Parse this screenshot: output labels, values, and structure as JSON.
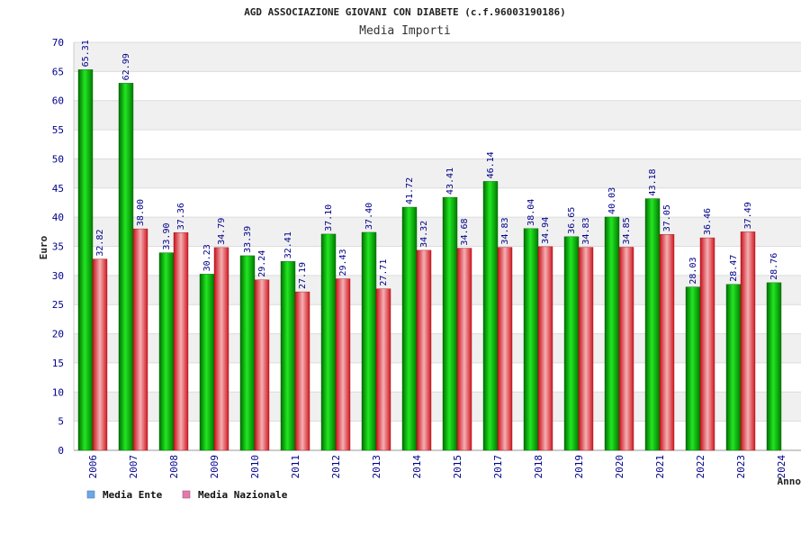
{
  "chart_data": {
    "type": "bar",
    "title": "AGD ASSOCIAZIONE GIOVANI CON DIABETE (c.f.96003190186)",
    "subtitle": "Media Importi",
    "xlabel": "Anno",
    "ylabel": "Euro",
    "ylim": [
      0,
      70
    ],
    "ytick_step": 5,
    "yticks": [
      "0",
      "5",
      "10",
      "15",
      "20",
      "25",
      "30",
      "35",
      "40",
      "45",
      "50",
      "55",
      "60",
      "65",
      "70"
    ],
    "grid": true,
    "legend_position": "bottom-left",
    "categories": [
      "2006",
      "2007",
      "2008",
      "2009",
      "2010",
      "2011",
      "2012",
      "2013",
      "2014",
      "2015",
      "2017",
      "2018",
      "2019",
      "2020",
      "2021",
      "2022",
      "2023",
      "2024"
    ],
    "series": [
      {
        "name": "Media Ente",
        "color": "#00b300",
        "legend_color": "#6aa8e8",
        "values": [
          65.31,
          62.99,
          33.9,
          30.23,
          33.39,
          32.41,
          37.1,
          37.4,
          41.72,
          43.41,
          46.14,
          38.04,
          36.65,
          40.03,
          43.18,
          28.03,
          28.47,
          28.76
        ],
        "labels": [
          "65.31",
          "62.99",
          "33.90",
          "30.23",
          "33.39",
          "32.41",
          "37.10",
          "37.40",
          "41.72",
          "43.41",
          "46.14",
          "38.04",
          "36.65",
          "40.03",
          "43.18",
          "28.03",
          "28.47",
          "28.76"
        ]
      },
      {
        "name": "Media Nazionale",
        "color": "#e8202a",
        "legend_color": "#e07ab0",
        "values": [
          32.82,
          38.0,
          37.36,
          34.79,
          29.24,
          27.19,
          29.43,
          27.71,
          34.32,
          34.68,
          34.83,
          34.94,
          34.83,
          34.85,
          37.05,
          36.46,
          37.49,
          null
        ],
        "labels": [
          "32.82",
          "38.00",
          "37.36",
          "34.79",
          "29.24",
          "27.19",
          "29.43",
          "27.71",
          "34.32",
          "34.68",
          "34.83",
          "34.94",
          "34.83",
          "34.85",
          "37.05",
          "36.46",
          "37.49",
          ""
        ]
      }
    ]
  }
}
